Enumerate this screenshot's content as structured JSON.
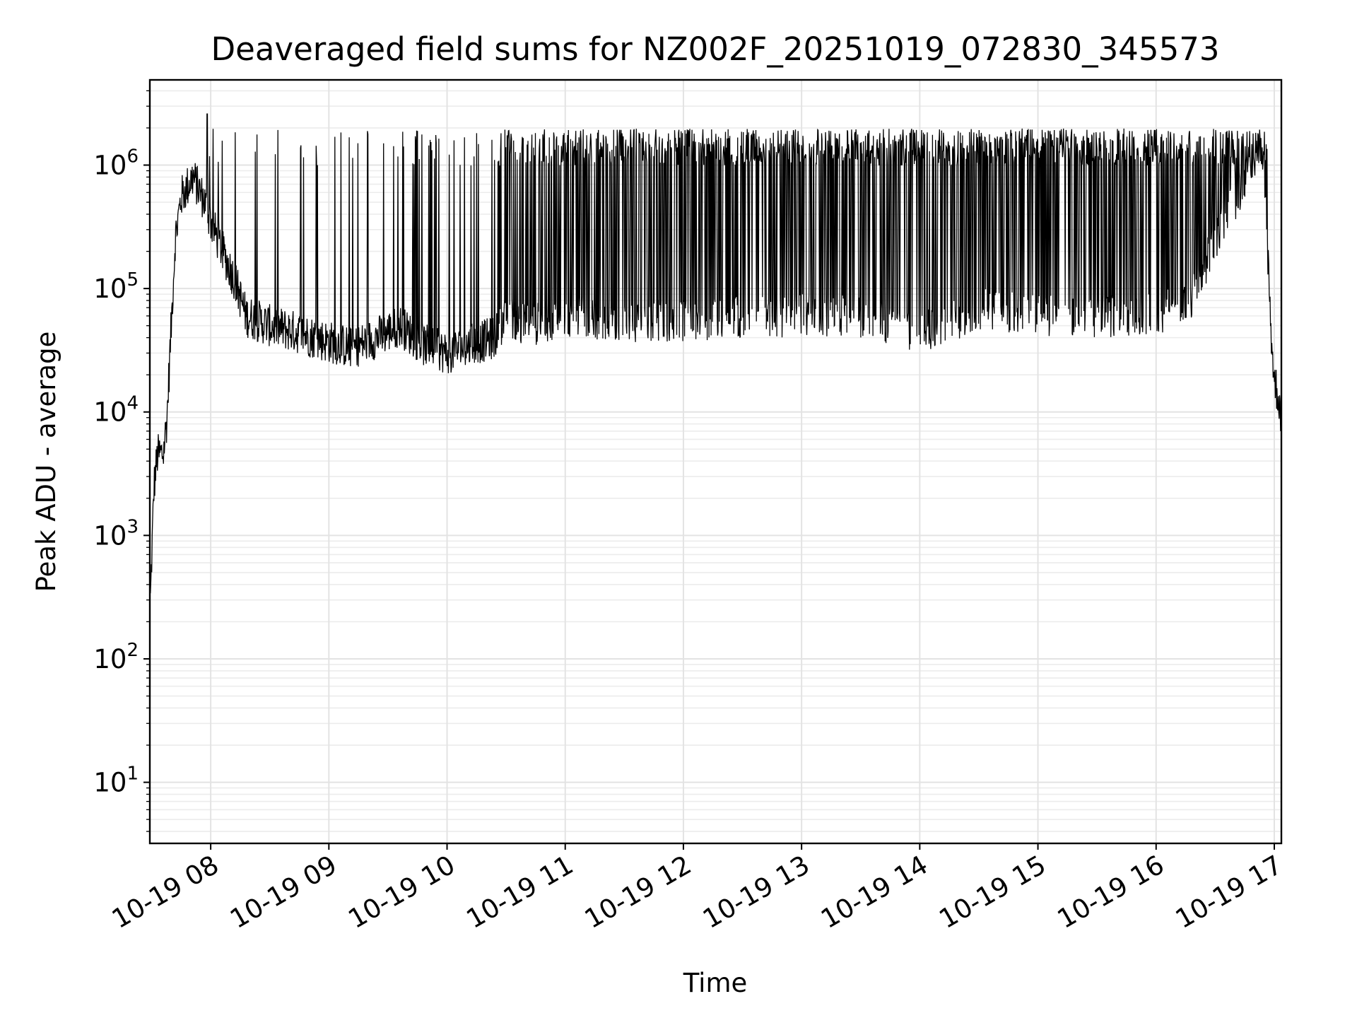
{
  "chart_data": {
    "type": "line",
    "title": "Deaveraged field sums for NZ002F_20251019_072830_345573",
    "xlabel": "Time",
    "ylabel": "Peak ADU - average",
    "yscale": "log",
    "ylim": [
      3.2,
      4900000
    ],
    "xlim_hours": [
      7.485,
      17.06
    ],
    "grid": true,
    "x_ticks": [
      {
        "label": "10-19 08",
        "hour": 8
      },
      {
        "label": "10-19 09",
        "hour": 9
      },
      {
        "label": "10-19 10",
        "hour": 10
      },
      {
        "label": "10-19 11",
        "hour": 11
      },
      {
        "label": "10-19 12",
        "hour": 12
      },
      {
        "label": "10-19 13",
        "hour": 13
      },
      {
        "label": "10-19 14",
        "hour": 14
      },
      {
        "label": "10-19 15",
        "hour": 15
      },
      {
        "label": "10-19 16",
        "hour": 16
      },
      {
        "label": "10-19 17",
        "hour": 17
      }
    ],
    "y_ticks": [
      {
        "base": "10",
        "exp": "1",
        "value": 10
      },
      {
        "base": "10",
        "exp": "2",
        "value": 100
      },
      {
        "base": "10",
        "exp": "3",
        "value": 1000
      },
      {
        "base": "10",
        "exp": "4",
        "value": 10000
      },
      {
        "base": "10",
        "exp": "5",
        "value": 100000
      },
      {
        "base": "10",
        "exp": "6",
        "value": 1000000
      }
    ],
    "series": [
      {
        "name": "Deaveraged field sum",
        "color": "#000000",
        "baseline_anchors": [
          [
            7.49,
            300
          ],
          [
            7.52,
            2500
          ],
          [
            7.55,
            4500
          ],
          [
            7.6,
            4600
          ],
          [
            7.63,
            9000
          ],
          [
            7.67,
            60000
          ],
          [
            7.7,
            250000
          ],
          [
            7.75,
            550000
          ],
          [
            7.85,
            800000
          ],
          [
            7.95,
            500000
          ],
          [
            8.0,
            350000
          ],
          [
            8.1,
            200000
          ],
          [
            8.2,
            120000
          ],
          [
            8.3,
            60000
          ],
          [
            8.5,
            50000
          ],
          [
            8.7,
            45000
          ],
          [
            9.0,
            37000
          ],
          [
            9.2,
            33000
          ],
          [
            9.4,
            40000
          ],
          [
            9.6,
            50000
          ],
          [
            9.8,
            35000
          ],
          [
            10.0,
            30000
          ],
          [
            10.2,
            35000
          ],
          [
            10.4,
            40000
          ],
          [
            10.5,
            60000
          ],
          [
            10.7,
            50000
          ],
          [
            11.0,
            60000
          ],
          [
            11.5,
            55000
          ],
          [
            12.0,
            55000
          ],
          [
            12.5,
            60000
          ],
          [
            13.0,
            60000
          ],
          [
            13.5,
            60000
          ],
          [
            14.0,
            45000
          ],
          [
            14.4,
            60000
          ],
          [
            14.6,
            70000
          ],
          [
            15.0,
            60000
          ],
          [
            15.5,
            60000
          ],
          [
            16.0,
            60000
          ],
          [
            16.3,
            80000
          ],
          [
            16.5,
            250000
          ],
          [
            16.7,
            600000
          ],
          [
            16.8,
            1000000
          ],
          [
            16.88,
            1300000
          ],
          [
            16.92,
            800000
          ],
          [
            16.97,
            50000
          ],
          [
            17.0,
            18000
          ],
          [
            17.03,
            14000
          ],
          [
            17.06,
            9000
          ]
        ],
        "spike_peak_typical": 1500000,
        "spike_peak_max": 2600000,
        "spike_peak_max_hour": 7.97
      }
    ]
  }
}
